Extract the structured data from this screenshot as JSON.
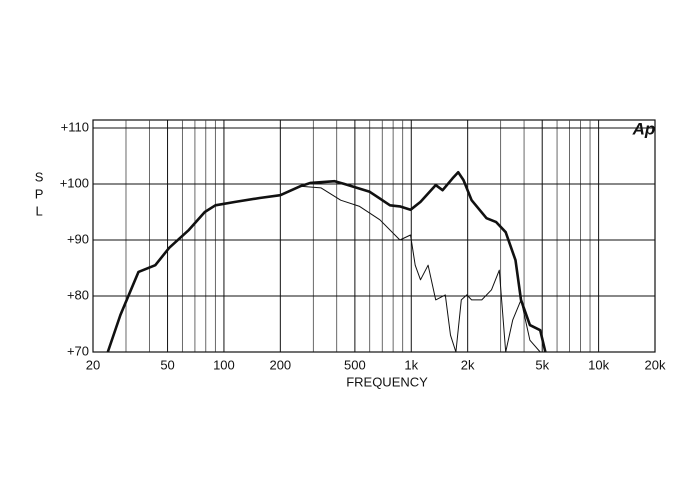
{
  "chart_data": {
    "type": "line",
    "logo": "Ap",
    "xlabel": "FREQUENCY",
    "ylabel": "SPL",
    "log_x": true,
    "grid": true,
    "xlim": [
      20,
      20000
    ],
    "ylim": [
      70,
      110
    ],
    "xticks": [
      20,
      50,
      100,
      200,
      500,
      {
        "value": 1000,
        "label": "1k"
      },
      {
        "value": 2000,
        "label": "2k"
      },
      {
        "value": 5000,
        "label": "5k"
      },
      {
        "value": 10000,
        "label": "10k"
      },
      {
        "value": 20000,
        "label": "20k"
      }
    ],
    "x_minor_grid": [
      30,
      40,
      60,
      70,
      80,
      90,
      300,
      400,
      600,
      700,
      800,
      900,
      3000,
      4000,
      6000,
      7000,
      8000,
      9000
    ],
    "yticks": [
      {
        "value": 70,
        "label": "+70"
      },
      {
        "value": 80,
        "label": "+80"
      },
      {
        "value": 90,
        "label": "+90"
      },
      {
        "value": 100,
        "label": "+100"
      },
      {
        "value": 110,
        "label": "+110"
      }
    ],
    "series": [
      {
        "color": "#111111",
        "width": 2.6,
        "x": [
          24,
          28,
          35,
          43,
          51,
          65,
          79,
          90,
          115,
          155,
          200,
          256,
          290,
          390,
          440,
          600,
          770,
          870,
          990,
          1120,
          1350,
          1470,
          1660,
          1780,
          1900,
          2100,
          2520,
          2840,
          3190,
          3600,
          3850,
          4300,
          4880,
          5200
        ],
        "values": [
          70,
          76.6,
          84.3,
          85.5,
          88.6,
          91.8,
          95,
          96.2,
          96.8,
          97.5,
          98,
          99.6,
          100.2,
          100.5,
          100,
          98.6,
          96.2,
          96,
          95.4,
          96.8,
          99.8,
          98.9,
          101,
          102.1,
          100.7,
          97.1,
          93.9,
          93.2,
          91.4,
          86.4,
          79.3,
          74.8,
          73.9,
          70
        ]
      },
      {
        "color": "#111111",
        "width": 1,
        "x": [
          256,
          330,
          420,
          530,
          680,
          870,
          990,
          1050,
          1120,
          1230,
          1350,
          1520,
          1620,
          1730,
          1850,
          1980,
          2100,
          2380,
          2680,
          2950,
          3190,
          3480,
          3850,
          4300,
          4880
        ],
        "values": [
          99.6,
          99.3,
          97.1,
          96,
          93.6,
          90,
          90.9,
          85.5,
          82.9,
          85.5,
          79.3,
          80.2,
          73,
          70,
          79.3,
          80.2,
          79.3,
          79.3,
          81.1,
          84.6,
          70,
          75.7,
          79.3,
          72.1,
          70
        ]
      }
    ]
  }
}
